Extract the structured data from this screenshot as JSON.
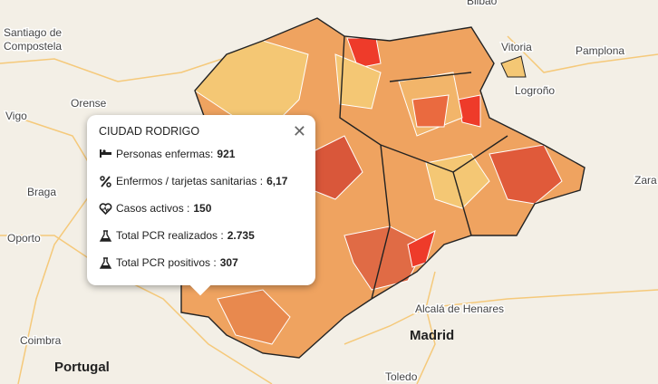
{
  "map": {
    "labels": [
      {
        "text": "Bilbao"
      },
      {
        "text": "Santiago de"
      },
      {
        "text": "Compostela"
      },
      {
        "text": "Vitoria"
      },
      {
        "text": "Pamplona"
      },
      {
        "text": "Logroño"
      },
      {
        "text": "Orense"
      },
      {
        "text": "Vigo"
      },
      {
        "text": "Braga"
      },
      {
        "text": "Oporto"
      },
      {
        "text": "Portugal"
      },
      {
        "text": "Coimbra"
      },
      {
        "text": "Alcalá de Henares"
      },
      {
        "text": "Madrid"
      },
      {
        "text": "Toledo"
      },
      {
        "text": "Zara"
      }
    ]
  },
  "popup": {
    "title": "CIUDAD RODRIGO",
    "rows": [
      {
        "label": "Personas enfermas:",
        "value": "921"
      },
      {
        "label": "Enfermos / tarjetas sanitarias :",
        "value": "6,17"
      },
      {
        "label": "Casos activos :",
        "value": "150"
      },
      {
        "label": "Total PCR realizados :",
        "value": "2.735"
      },
      {
        "label": "Total PCR positivos :",
        "value": "307"
      }
    ]
  }
}
